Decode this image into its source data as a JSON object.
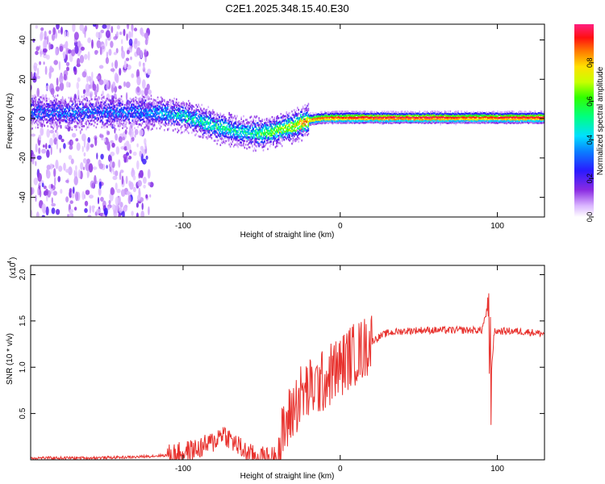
{
  "figure_title": "C2E1.2025.348.15.40.E30",
  "chart_data": [
    {
      "type": "heatmap",
      "title": "C2E1.2025.348.15.40.E30",
      "xlabel": "Height of straight line (km)",
      "ylabel": "Frequency (Hz)",
      "xlim": [
        -197,
        130
      ],
      "ylim": [
        -50,
        48
      ],
      "x_ticks": [
        -100,
        0,
        100
      ],
      "x_tick_labels": [
        "-100",
        "0",
        "100"
      ],
      "y_ticks": [
        -40,
        -20,
        0,
        20,
        40
      ],
      "y_tick_labels": [
        "-40",
        "-20",
        "0",
        "20",
        "40"
      ],
      "colorbar": {
        "label": "Normalized spectral amplitude",
        "range": [
          0.0,
          1.0
        ],
        "ticks": [
          0.0,
          0.2,
          0.4,
          0.6,
          0.8
        ],
        "tick_labels": [
          "0.0",
          "0.2",
          "0.4",
          "0.6",
          "0.8"
        ],
        "colormap": "rainbow (white-violet-blue-cyan-green-yellow-red-pink)"
      },
      "ridge": {
        "description": "Frequency offset of main signal ridge vs height",
        "x": [
          -197,
          -150,
          -120,
          -100,
          -80,
          -65,
          -50,
          -40,
          -30,
          -20,
          -10,
          0,
          10,
          30,
          60,
          90,
          100,
          130
        ],
        "freq": [
          4,
          4,
          4,
          2,
          -3,
          -6,
          -7,
          -5,
          -3,
          0,
          1,
          1,
          1,
          1,
          1,
          1,
          1,
          1
        ],
        "amplitude": [
          0.3,
          0.3,
          0.35,
          0.45,
          0.5,
          0.45,
          0.55,
          0.65,
          0.75,
          0.85,
          0.9,
          0.9,
          0.95,
          0.97,
          0.97,
          0.9,
          0.95,
          0.95
        ]
      },
      "noise_region_x": [
        -197,
        -120
      ]
    },
    {
      "type": "line",
      "xlabel": "Height of straight line (km)",
      "ylabel": "SNR (10 * v/v)",
      "y_multiplier_label": "(x10",
      "y_multiplier_exponent": "4",
      "xlim": [
        -197,
        130
      ],
      "ylim": [
        0,
        2.1
      ],
      "x_ticks": [
        -100,
        0,
        100
      ],
      "x_tick_labels": [
        "-100",
        "0",
        "100"
      ],
      "y_ticks": [
        0.5,
        1.0,
        1.5,
        2.0
      ],
      "y_tick_labels": [
        "0.5",
        "1.0",
        "1.5",
        "2.0"
      ],
      "color": "#e8322e",
      "series": [
        {
          "name": "SNR",
          "x": [
            -197,
            -160,
            -130,
            -110,
            -100,
            -90,
            -80,
            -75,
            -70,
            -65,
            -60,
            -55,
            -50,
            -45,
            -40,
            -35,
            -30,
            -25,
            -20,
            -15,
            -10,
            -5,
            0,
            5,
            10,
            15,
            20,
            25,
            30,
            40,
            50,
            60,
            70,
            80,
            90,
            94,
            96,
            98,
            100,
            110,
            120,
            130
          ],
          "y": [
            0.02,
            0.02,
            0.03,
            0.05,
            0.08,
            0.12,
            0.2,
            0.3,
            0.22,
            0.15,
            0.08,
            0.04,
            0.03,
            0.02,
            0.05,
            0.35,
            0.55,
            0.7,
            0.75,
            0.8,
            0.85,
            0.95,
            1.0,
            1.1,
            1.15,
            1.2,
            1.28,
            1.33,
            1.37,
            1.39,
            1.4,
            1.4,
            1.4,
            1.4,
            1.4,
            1.65,
            0.9,
            1.38,
            1.39,
            1.39,
            1.38,
            1.36
          ]
        }
      ]
    }
  ]
}
